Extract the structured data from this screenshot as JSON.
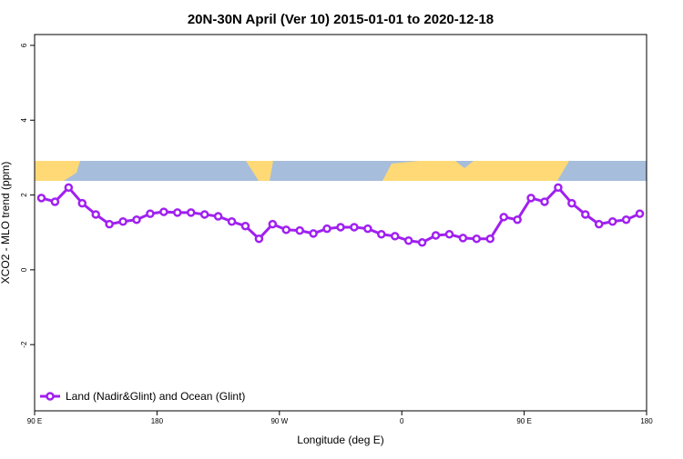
{
  "chart_data": {
    "type": "line",
    "title": "20N-30N April (Ver 10)   2015-01-01 to 2020-12-18",
    "x_label": "Longitude (deg E)",
    "y_label": "XCO2 - MLO trend (ppm)",
    "x": [
      95,
      105,
      115,
      125,
      135,
      145,
      155,
      165,
      175,
      185,
      195,
      205,
      215,
      225,
      235,
      245,
      255,
      265,
      275,
      285,
      295,
      305,
      315,
      325,
      335,
      345,
      355,
      365,
      375,
      385,
      395,
      405,
      415,
      425,
      435,
      445,
      455,
      465,
      475,
      485,
      495,
      505,
      515,
      525,
      535
    ],
    "series": [
      {
        "name": "Land (Nadir&Glint) and Ocean (Glint)",
        "color": "#a020f0",
        "values": [
          1.92,
          1.82,
          2.2,
          1.78,
          1.48,
          1.22,
          1.29,
          1.34,
          1.5,
          1.55,
          1.53,
          1.53,
          1.48,
          1.43,
          1.29,
          1.17,
          0.83,
          1.22,
          1.07,
          1.05,
          0.97,
          1.1,
          1.14,
          1.14,
          1.1,
          0.95,
          0.9,
          0.78,
          0.73,
          0.92,
          0.95,
          0.85,
          0.83,
          0.83,
          1.41,
          1.34,
          1.92,
          1.82,
          2.2,
          1.78,
          1.48,
          1.22,
          1.29,
          1.34,
          1.5
        ]
      }
    ],
    "xlim": [
      90,
      540
    ],
    "xticks": [
      {
        "value": 90,
        "label": "90 E"
      },
      180,
      {
        "value": 270,
        "label": "90 W"
      },
      {
        "value": 360,
        "label": "0"
      },
      {
        "value": 450,
        "label": "90 E"
      },
      {
        "value": 540,
        "label": "180"
      }
    ],
    "ylim": [
      -3.77,
      6.29
    ],
    "yticks": [
      -2,
      0,
      2,
      4,
      6
    ],
    "legend": "bottom-left"
  }
}
